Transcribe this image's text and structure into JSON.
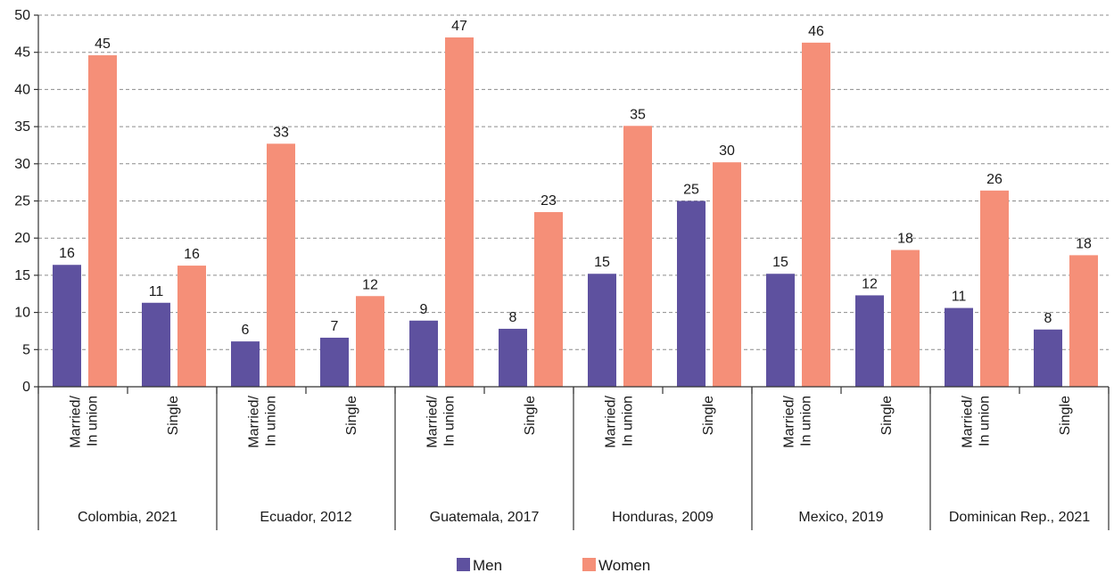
{
  "chart_data": {
    "type": "bar",
    "groups": [
      {
        "label": "Colombia, 2021",
        "categories": [
          "Married/\nIn union",
          "Single"
        ]
      },
      {
        "label": "Ecuador, 2012",
        "categories": [
          "Married/\nIn union",
          "Single"
        ]
      },
      {
        "label": "Guatemala, 2017",
        "categories": [
          "Married/\nIn union",
          "Single"
        ]
      },
      {
        "label": "Honduras, 2009",
        "categories": [
          "Married/\nIn union",
          "Single"
        ]
      },
      {
        "label": "Mexico, 2019",
        "categories": [
          "Married/\nIn union",
          "Single"
        ]
      },
      {
        "label": "Dominican Rep., 2021",
        "categories": [
          "Married/\nIn union",
          "Single"
        ]
      }
    ],
    "categories": [
      "Colombia, 2021 | Married/In union",
      "Colombia, 2021 | Single",
      "Ecuador, 2012 | Married/In union",
      "Ecuador, 2012 | Single",
      "Guatemala, 2017 | Married/In union",
      "Guatemala, 2017 | Single",
      "Honduras, 2009 | Married/In union",
      "Honduras, 2009 | Single",
      "Mexico, 2019 | Married/In union",
      "Mexico, 2019 | Single",
      "Dominican Rep., 2021 | Married/In union",
      "Dominican Rep., 2021 | Single"
    ],
    "series": [
      {
        "name": "Men",
        "color": "#5e519f",
        "values": [
          16.4,
          11.3,
          6.1,
          6.6,
          8.9,
          7.8,
          15.2,
          25.0,
          15.2,
          12.3,
          10.6,
          7.7
        ],
        "labels": [
          "16",
          "11",
          "6",
          "7",
          "9",
          "8",
          "15",
          "25",
          "15",
          "12",
          "11",
          "8"
        ]
      },
      {
        "name": "Women",
        "color": "#f58f78",
        "values": [
          44.6,
          16.3,
          32.7,
          12.2,
          47.0,
          23.5,
          35.1,
          30.2,
          46.3,
          18.4,
          26.4,
          17.7
        ],
        "labels": [
          "45",
          "16",
          "33",
          "12",
          "47",
          "23",
          "35",
          "30",
          "46",
          "18",
          "26",
          "18"
        ]
      }
    ],
    "y_ticks": [
      "0",
      "5",
      "10",
      "15",
      "20",
      "25",
      "30",
      "35",
      "40",
      "45",
      "50"
    ],
    "ylim": [
      0,
      50
    ],
    "grid": true,
    "legend": "bottom-center",
    "title": "",
    "xlabel": "",
    "ylabel": ""
  }
}
